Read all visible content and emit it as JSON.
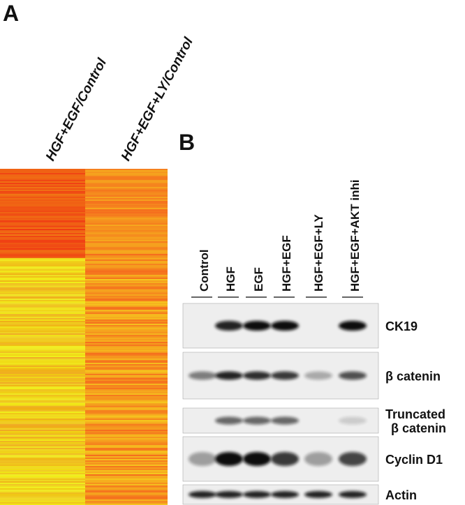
{
  "panel_a": {
    "letter": "A",
    "columns": [
      "HGF+EGF/Control",
      "HGF+EGF+LY/Control"
    ]
  },
  "panel_b": {
    "letter": "B",
    "lanes": [
      "Control",
      "HGF",
      "EGF",
      "HGF+EGF",
      "HGF+EGF+LY",
      "HGF+EGF+AKT inhi"
    ],
    "blot_rows": [
      {
        "label": [
          "CK19"
        ]
      },
      {
        "label": [
          "β catenin"
        ]
      },
      {
        "label": [
          "Truncated",
          "β catenin"
        ]
      },
      {
        "label": [
          "Cyclin D1"
        ]
      },
      {
        "label": [
          "Actin"
        ]
      }
    ]
  }
}
